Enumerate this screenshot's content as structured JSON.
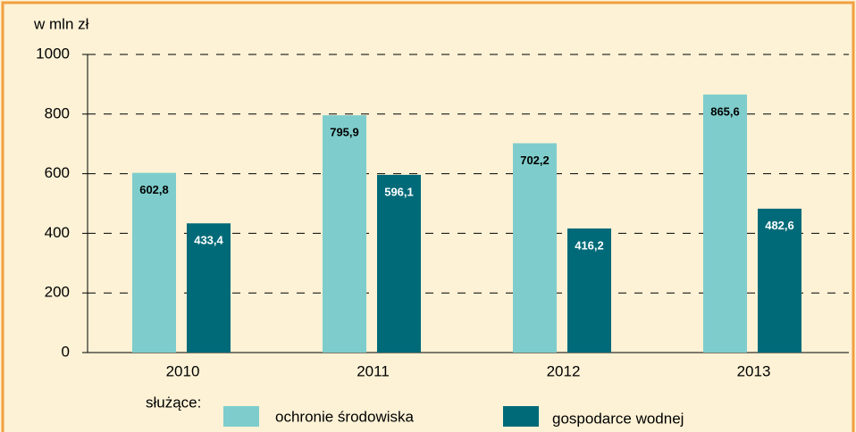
{
  "chart_data": {
    "type": "bar",
    "y_label": "w mln zł",
    "categories": [
      "2010",
      "2011",
      "2012",
      "2013"
    ],
    "series": [
      {
        "name": "ochronie środowiska",
        "color": "#7ecdcc",
        "values": [
          602.8,
          795.9,
          702.2,
          865.6
        ],
        "value_labels": [
          "602,8",
          "795,9",
          "702,2",
          "865,6"
        ]
      },
      {
        "name": "gospodarce wodnej",
        "color": "#006a78",
        "values": [
          433.4,
          596.1,
          416.2,
          482.6
        ],
        "value_labels": [
          "433,4",
          "596,1",
          "416,2",
          "482,6"
        ]
      }
    ],
    "legend_title": "służące:",
    "ylim": [
      0,
      1000
    ],
    "yticks": [
      0,
      200,
      400,
      600,
      800,
      1000
    ],
    "grid": true
  }
}
